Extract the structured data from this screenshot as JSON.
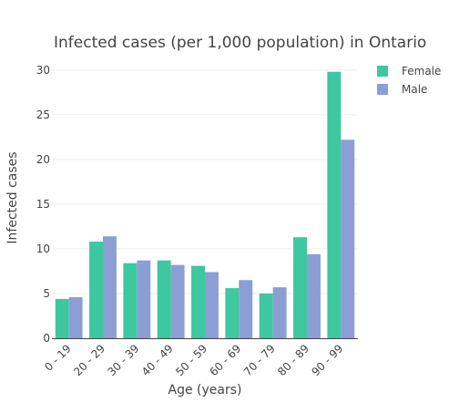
{
  "chart_data": {
    "type": "bar",
    "title": "Infected cases (per 1,000 population) in Ontario",
    "xlabel": "Age (years)",
    "ylabel": "Infected cases",
    "categories": [
      "0 - 19",
      "20 - 29",
      "30 - 39",
      "40 - 49",
      "50 - 59",
      "60 - 69",
      "70 - 79",
      "80 - 89",
      "90 - 99"
    ],
    "series": [
      {
        "name": "Female",
        "color": "#3dc8a0",
        "values": [
          4.4,
          10.8,
          8.4,
          8.7,
          8.1,
          5.6,
          5.0,
          11.3,
          29.8
        ]
      },
      {
        "name": "Male",
        "color": "#8c9fd4",
        "values": [
          4.6,
          11.4,
          8.7,
          8.2,
          7.4,
          6.5,
          5.7,
          9.4,
          22.2
        ]
      }
    ],
    "ylim": [
      0,
      31
    ],
    "yticks": [
      "0",
      "5",
      "10",
      "15",
      "20",
      "25",
      "30"
    ],
    "grid": true,
    "legend_position": "top-right"
  }
}
